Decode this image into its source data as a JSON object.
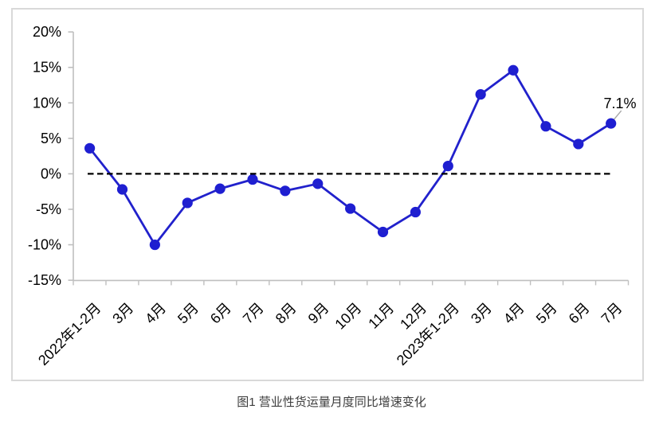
{
  "caption": "图1 营业性货运量月度同比增速变化",
  "chart_data": {
    "type": "line",
    "title": "图1 营业性货运量月度同比增速变化",
    "categories": [
      "2022年1-2月",
      "3月",
      "4月",
      "5月",
      "6月",
      "7月",
      "8月",
      "9月",
      "10月",
      "11月",
      "12月",
      "2023年1-2月",
      "3月",
      "4月",
      "5月",
      "6月",
      "7月"
    ],
    "values": [
      3.6,
      -2.2,
      -10.0,
      -4.1,
      -2.1,
      -0.8,
      -2.4,
      -1.4,
      -4.9,
      -8.2,
      -5.4,
      1.1,
      11.2,
      14.6,
      6.7,
      4.2,
      7.1
    ],
    "xlabel": "",
    "ylabel": "",
    "ylim": [
      -15,
      20
    ],
    "y_tick_labels": [
      "20%",
      "15%",
      "10%",
      "5%",
      "0%",
      "-5%",
      "-10%",
      "-15%"
    ],
    "y_tick_values": [
      20,
      15,
      10,
      5,
      0,
      -5,
      -10,
      -15
    ],
    "x_label_rotation_deg": 45,
    "grid": false,
    "legend": false,
    "zero_line": {
      "style": "dashed",
      "color": "#000000"
    },
    "annotation": {
      "text": "7.1%",
      "point_index": 16,
      "leader_color": "#a6a6a6"
    },
    "line_color": "#2121cc",
    "marker_color": "#1e1ed2",
    "axis_color": "#bfbfbf",
    "border_color": "#d9d9d9"
  }
}
